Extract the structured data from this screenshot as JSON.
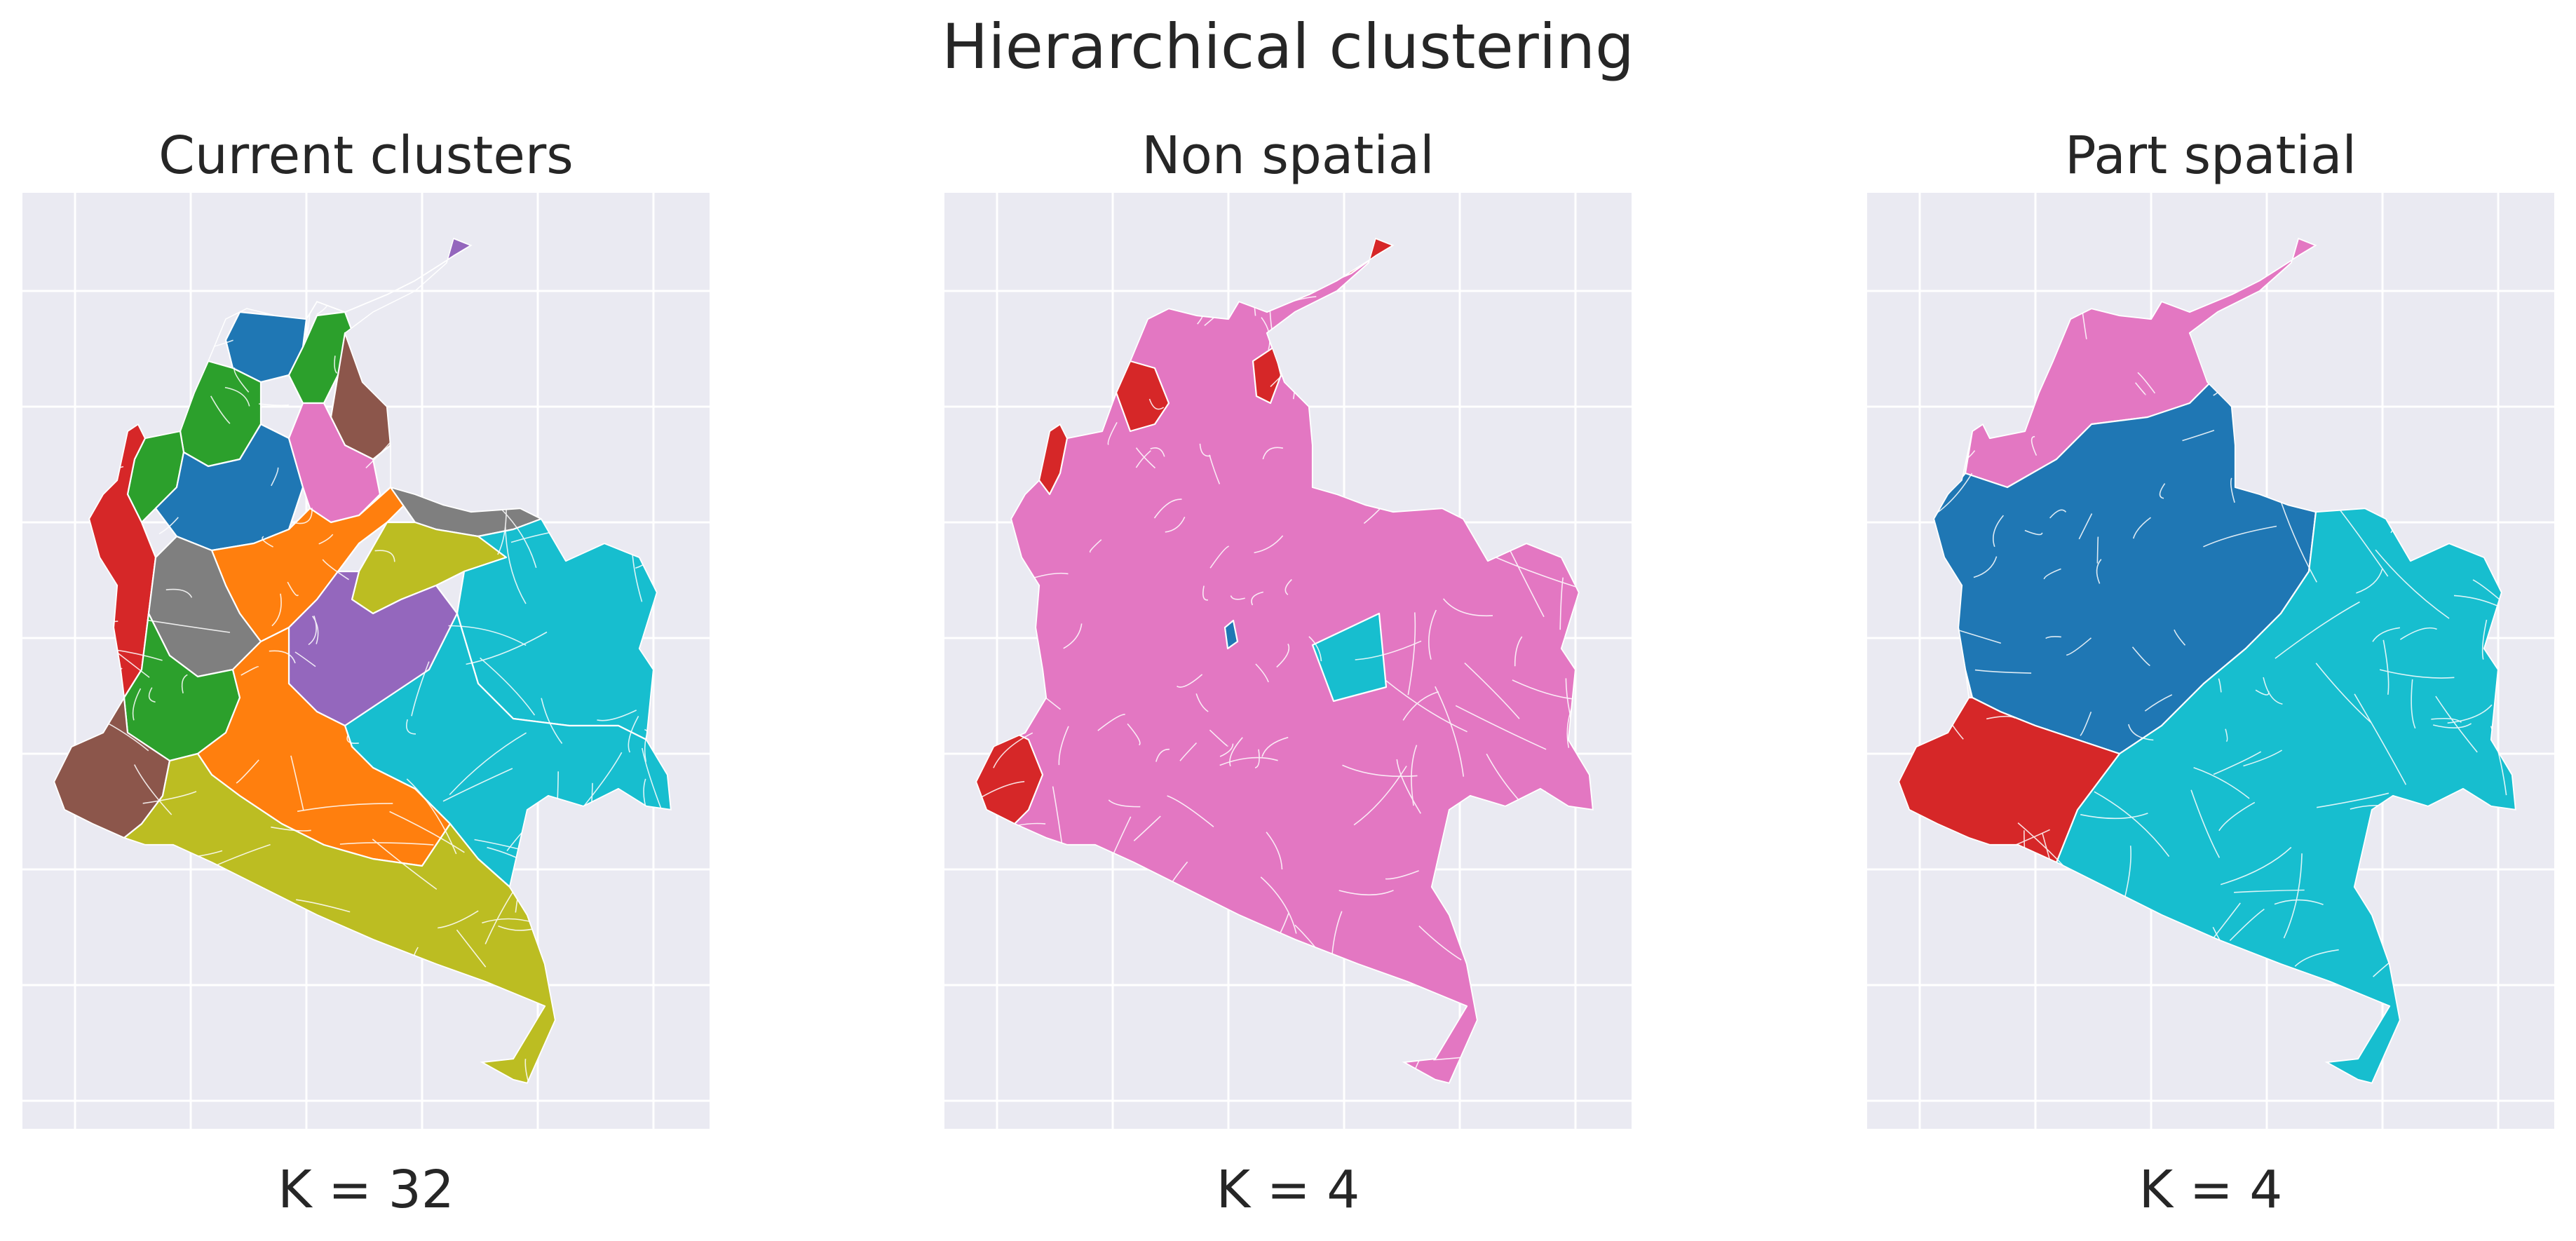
{
  "figure": {
    "title": "Hierarchical clustering"
  },
  "palette": {
    "background": "#eaeaf2",
    "grid": "#ffffff",
    "tab_blue": "#1f77b4",
    "tab_orange": "#ff7f0e",
    "tab_green": "#2ca02c",
    "tab_red": "#d62728",
    "tab_purple": "#9467bd",
    "tab_brown": "#8c564b",
    "tab_pink": "#e377c2",
    "tab_gray": "#7f7f7f",
    "tab_olive": "#bcbd22",
    "tab_cyan": "#17becf"
  },
  "panels": [
    {
      "id": "current",
      "title": "Current clusters",
      "xlabel": "K = 32",
      "k": 32,
      "regions": [
        {
          "name": "north-coast",
          "color": "#9467bd"
        },
        {
          "name": "atlantico-band",
          "color": "#1f77b4"
        },
        {
          "name": "cordoba-sucre",
          "color": "#2ca02c"
        },
        {
          "name": "cesar-band",
          "color": "#2ca02c"
        },
        {
          "name": "santander-east",
          "color": "#8c564b"
        },
        {
          "name": "antioquia-west",
          "color": "#2ca02c"
        },
        {
          "name": "antioquia-core",
          "color": "#1f77b4"
        },
        {
          "name": "boyaca-pink",
          "color": "#e377c2"
        },
        {
          "name": "pacific-choco",
          "color": "#d62728"
        },
        {
          "name": "andean-center",
          "color": "#ff7f0e"
        },
        {
          "name": "arauca-band",
          "color": "#7f7f7f"
        },
        {
          "name": "casanare-band",
          "color": "#bcbd22"
        },
        {
          "name": "meta-band",
          "color": "#9467bd"
        },
        {
          "name": "vichada-east",
          "color": "#17becf"
        },
        {
          "name": "guainia-vaupes",
          "color": "#17becf"
        },
        {
          "name": "valle-gray",
          "color": "#7f7f7f"
        },
        {
          "name": "cauca-green",
          "color": "#2ca02c"
        },
        {
          "name": "narino-brown",
          "color": "#8c564b"
        },
        {
          "name": "caqueta-orange",
          "color": "#ff7f0e"
        },
        {
          "name": "putumayo-amazonas",
          "color": "#bcbd22"
        }
      ]
    },
    {
      "id": "nonspatial",
      "title": "Non spatial",
      "xlabel": "K = 4",
      "k": 4,
      "regions": [
        {
          "name": "mainland",
          "color": "#e377c2"
        },
        {
          "name": "guajira-red",
          "color": "#d62728"
        },
        {
          "name": "cordoba-red",
          "color": "#d62728"
        },
        {
          "name": "magdalena-red",
          "color": "#d62728"
        },
        {
          "name": "pacific-red",
          "color": "#d62728"
        },
        {
          "name": "narino-red",
          "color": "#d62728"
        },
        {
          "name": "meta-cyan-block",
          "color": "#17becf"
        },
        {
          "name": "central-blue",
          "color": "#1f77b4"
        }
      ]
    },
    {
      "id": "partspatial",
      "title": "Part spatial",
      "xlabel": "K = 4",
      "k": 4,
      "regions": [
        {
          "name": "north-pink",
          "color": "#e377c2"
        },
        {
          "name": "andean-blue",
          "color": "#1f77b4"
        },
        {
          "name": "east-cyan",
          "color": "#17becf"
        },
        {
          "name": "southwest-red",
          "color": "#d62728"
        }
      ]
    }
  ]
}
